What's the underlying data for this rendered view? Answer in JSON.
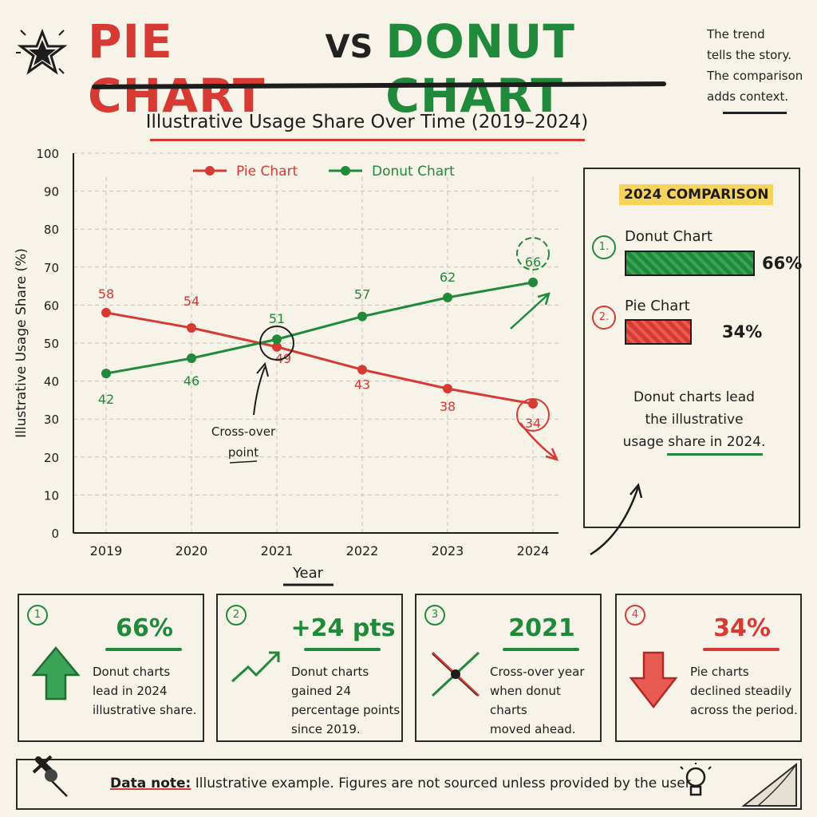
{
  "header": {
    "title_left": "PIE CHART",
    "title_mid": "VS",
    "title_right": "DONUT CHART",
    "side_note": [
      "The trend",
      "tells the story.",
      "The comparison",
      "adds context."
    ]
  },
  "chart_data": {
    "type": "line",
    "title": "Illustrative Usage Share Over Time (2019–2024)",
    "xlabel": "Year",
    "ylabel": "Illustrative Usage Share (%)",
    "x": [
      "2019",
      "2020",
      "2021",
      "2022",
      "2023",
      "2024"
    ],
    "ylim": [
      0,
      100
    ],
    "yticks": [
      0,
      10,
      20,
      30,
      40,
      50,
      60,
      70,
      80,
      90,
      100
    ],
    "grid": true,
    "legend": "top",
    "series": [
      {
        "name": "Pie Chart",
        "color": "#d63a33",
        "values": [
          58,
          54,
          49,
          43,
          38,
          34
        ]
      },
      {
        "name": "Donut Chart",
        "color": "#1f8a3a",
        "values": [
          42,
          46,
          51,
          57,
          62,
          66
        ]
      }
    ],
    "annotations": [
      {
        "text": "Cross-over point",
        "x": "2021"
      }
    ]
  },
  "comparison": {
    "title": "2024 COMPARISON",
    "items": [
      {
        "rank": "1.",
        "name": "Donut Chart",
        "value": 66,
        "label": "66%",
        "color": "#1f8a3a"
      },
      {
        "rank": "2.",
        "name": "Pie Chart",
        "value": 34,
        "label": "34%",
        "color": "#d63a33"
      }
    ],
    "note_lines": [
      "Donut charts lead",
      "the illustrative",
      "usage share in 2024."
    ]
  },
  "cards": [
    {
      "num": "1",
      "big": "66%",
      "color": "#1f8a3a",
      "icon": "up-arrow-icon",
      "desc_lines": [
        "Donut charts",
        "lead in 2024",
        "illustrative share."
      ]
    },
    {
      "num": "2",
      "big": "+24 pts",
      "color": "#1f8a3a",
      "icon": "trend-up-icon",
      "desc_lines": [
        "Donut charts",
        "gained 24",
        "percentage points",
        "since 2019."
      ]
    },
    {
      "num": "3",
      "big": "2021",
      "color": "#1f8a3a",
      "icon": "crossover-icon",
      "desc_lines": [
        "Cross-over year",
        "when donut charts",
        "moved ahead."
      ]
    },
    {
      "num": "4",
      "big": "34%",
      "color": "#d63a33",
      "icon": "down-arrow-icon",
      "desc_lines": [
        "Pie charts",
        "declined steadily",
        "across the period."
      ]
    }
  ],
  "footer": {
    "label": "Data note:",
    "text": " Illustrative example. Figures are not sourced unless provided by the user.",
    "icons": [
      "pushpin-icon",
      "lightbulb-icon"
    ]
  }
}
